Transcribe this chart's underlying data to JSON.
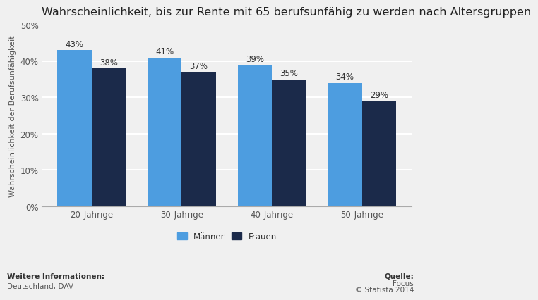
{
  "title": "Wahrscheinlichkeit, bis zur Rente mit 65 berufsunfähig zu werden nach Altersgruppen",
  "categories": [
    "20-Jährige",
    "30-Jährige",
    "40-Jährige",
    "50-Jährige"
  ],
  "manner_values": [
    43,
    41,
    39,
    34
  ],
  "frauen_values": [
    38,
    37,
    35,
    29
  ],
  "manner_color": "#4d9de0",
  "frauen_color": "#1b2a4a",
  "ylabel": "Wahrscheinlichkeit der Berufsunfähigkeit",
  "ylim": [
    0,
    50
  ],
  "yticks": [
    0,
    10,
    20,
    30,
    40,
    50
  ],
  "ytick_labels": [
    "0%",
    "10%",
    "20%",
    "30%",
    "40%",
    "50%"
  ],
  "legend_manner": "Männer",
  "legend_frauen": "Frauen",
  "footer_left_bold": "Weitere Informationen:",
  "footer_left": "Deutschland; DAV",
  "footer_right_bold": "Quelle:",
  "footer_right_line1": "Focus",
  "footer_right_line2": "© Statista 2014",
  "bar_width": 0.38,
  "background_color": "#f0f0f0",
  "plot_bg_color": "#f0f0f0",
  "title_fontsize": 11.5,
  "label_fontsize": 8,
  "tick_fontsize": 8.5,
  "annot_fontsize": 8.5,
  "grid_color": "#ffffff",
  "grid_linewidth": 1.5
}
